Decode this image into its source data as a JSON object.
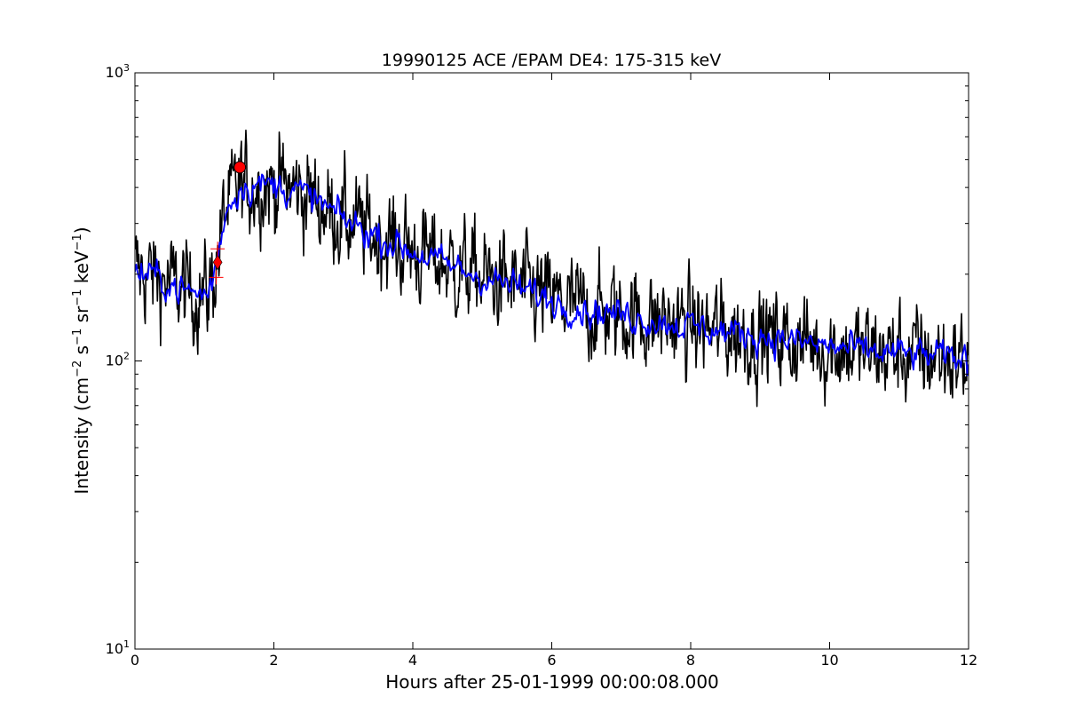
{
  "chart_data": {
    "type": "line",
    "title": "19990125 ACE /EPAM DE4: 175-315 keV",
    "xlabel": "Hours after 25-01-1999 00:00:08.000",
    "ylabel": {
      "prefix": "Intensity (cm",
      "exp1": "−2",
      "s": " s",
      "exp2": "−1",
      "sr": " sr",
      "exp3": "−1",
      "kev": " keV",
      "exp4": "−1",
      "suffix": ")"
    },
    "xlim": [
      0,
      12
    ],
    "ylim": [
      10,
      1000
    ],
    "yscale": "log",
    "grid": false,
    "x_ticks": [
      "0",
      "2",
      "4",
      "6",
      "8",
      "10",
      "12"
    ],
    "y_ticks": [
      {
        "base": "10",
        "exp": "1",
        "value": 10
      },
      {
        "base": "10",
        "exp": "2",
        "value": 100
      },
      {
        "base": "10",
        "exp": "3",
        "value": 1000
      }
    ],
    "series": [
      {
        "color": "#000000",
        "noise": "high",
        "x": [
          0.0,
          0.3,
          0.6,
          0.9,
          1.05,
          1.12,
          1.2,
          1.3,
          1.5,
          1.8,
          2.0,
          2.3,
          2.6,
          3.0,
          3.5,
          4.0,
          4.5,
          5.0,
          5.5,
          6.0,
          6.5,
          7.0,
          7.5,
          8.0,
          8.5,
          9.0,
          9.5,
          10.0,
          10.5,
          11.0,
          11.5,
          12.0
        ],
        "y": [
          205,
          195,
          180,
          170,
          172,
          190,
          240,
          330,
          400,
          410,
          405,
          395,
          360,
          310,
          270,
          240,
          215,
          195,
          180,
          162,
          150,
          145,
          138,
          132,
          126,
          122,
          117,
          112,
          108,
          106,
          104,
          101
        ]
      },
      {
        "color": "#0000ff",
        "noise": "low",
        "x": [
          0.0,
          0.3,
          0.6,
          0.9,
          1.05,
          1.12,
          1.2,
          1.3,
          1.5,
          1.8,
          2.0,
          2.3,
          2.6,
          3.0,
          3.5,
          4.0,
          4.5,
          5.0,
          5.5,
          6.0,
          6.5,
          7.0,
          7.5,
          8.0,
          8.5,
          9.0,
          9.5,
          10.0,
          10.5,
          11.0,
          11.5,
          12.0
        ],
        "y": [
          205,
          195,
          180,
          170,
          172,
          190,
          240,
          330,
          400,
          410,
          405,
          395,
          360,
          310,
          270,
          240,
          215,
          195,
          180,
          162,
          150,
          145,
          138,
          132,
          126,
          122,
          117,
          112,
          108,
          106,
          104,
          101
        ]
      }
    ],
    "markers": [
      {
        "shape": "diamond",
        "x": 1.19,
        "y": 220,
        "color": "#ff0000"
      },
      {
        "shape": "plus",
        "x": 1.19,
        "y": 245,
        "color": "#ff0000"
      },
      {
        "shape": "plus",
        "x": 1.17,
        "y": 195,
        "color": "#ff0000"
      },
      {
        "shape": "circle",
        "x": 1.51,
        "y": 470,
        "color": "#ff0000"
      }
    ]
  }
}
